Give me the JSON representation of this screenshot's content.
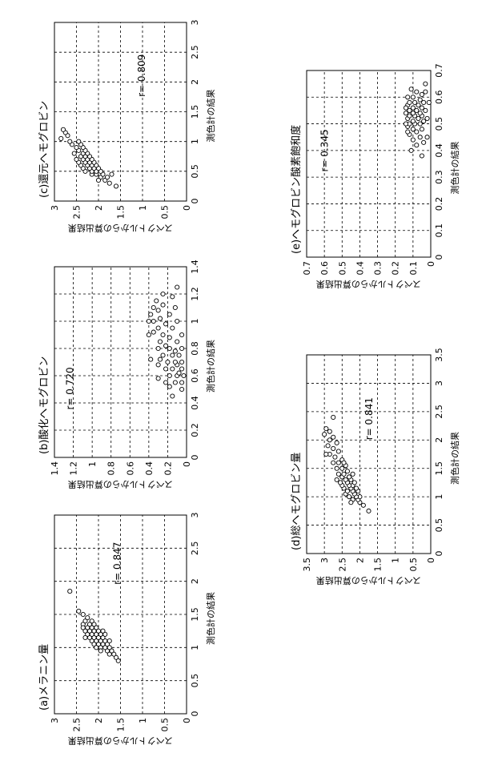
{
  "chart_data": [
    {
      "id": "a",
      "type": "scatter",
      "title": "(a)メラニン量",
      "xlabel": "測色計の結果",
      "ylabel": "スペクトルからの算出結果",
      "xlim": [
        0,
        3
      ],
      "ylim": [
        0,
        3
      ],
      "xticks": [
        "0",
        "0.5",
        "1",
        "1.5",
        "2",
        "2.5",
        "3"
      ],
      "yticks": [
        "0",
        "0.5",
        "1",
        "1.5",
        "2",
        "2.5",
        "3"
      ],
      "annotation": "r= 0.847",
      "annotation_pos": [
        1.95,
        1.5
      ],
      "grid": true,
      "points": [
        [
          0.8,
          1.55
        ],
        [
          0.85,
          1.6
        ],
        [
          0.9,
          1.65
        ],
        [
          0.9,
          1.75
        ],
        [
          0.95,
          1.7
        ],
        [
          0.95,
          1.8
        ],
        [
          1.0,
          1.75
        ],
        [
          1.0,
          1.85
        ],
        [
          1.0,
          1.95
        ],
        [
          1.05,
          1.8
        ],
        [
          1.05,
          1.9
        ],
        [
          1.05,
          2.0
        ],
        [
          1.1,
          1.85
        ],
        [
          1.1,
          1.95
        ],
        [
          1.1,
          2.05
        ],
        [
          1.1,
          2.15
        ],
        [
          1.15,
          1.9
        ],
        [
          1.15,
          2.0
        ],
        [
          1.15,
          2.1
        ],
        [
          1.15,
          2.2
        ],
        [
          1.2,
          1.95
        ],
        [
          1.2,
          2.05
        ],
        [
          1.2,
          2.15
        ],
        [
          1.2,
          2.25
        ],
        [
          1.25,
          2.0
        ],
        [
          1.25,
          2.1
        ],
        [
          1.25,
          2.2
        ],
        [
          1.25,
          2.3
        ],
        [
          1.3,
          2.05
        ],
        [
          1.3,
          2.15
        ],
        [
          1.3,
          2.25
        ],
        [
          1.35,
          2.1
        ],
        [
          1.35,
          2.2
        ],
        [
          1.35,
          2.35
        ],
        [
          1.4,
          2.15
        ],
        [
          1.4,
          2.3
        ],
        [
          1.45,
          2.25
        ],
        [
          1.5,
          2.35
        ],
        [
          1.55,
          2.45
        ],
        [
          1.85,
          2.65
        ],
        [
          0.95,
          1.95
        ],
        [
          1.05,
          2.1
        ],
        [
          1.15,
          2.3
        ],
        [
          1.2,
          1.85
        ],
        [
          1.3,
          2.35
        ],
        [
          1.0,
          2.05
        ],
        [
          1.1,
          1.75
        ],
        [
          1.25,
          1.9
        ]
      ]
    },
    {
      "id": "b",
      "type": "scatter",
      "title": "(b)酸化ヘモグロビン",
      "xlabel": "測色計の結果",
      "ylabel": "スペクトルからの算出結果",
      "xlim": [
        0,
        1.4
      ],
      "ylim": [
        0,
        1.4
      ],
      "xticks": [
        "0",
        "0.2",
        "0.4",
        "0.6",
        "0.8",
        "1",
        "1.2",
        "1.4"
      ],
      "yticks": [
        "0",
        "0.2",
        "0.4",
        "0.6",
        "0.8",
        "1",
        "1.2",
        "1.4"
      ],
      "annotation": "r= 0.720",
      "annotation_pos": [
        0.35,
        1.2
      ],
      "grid": true,
      "points": [
        [
          0.5,
          0.05
        ],
        [
          0.55,
          0.05
        ],
        [
          0.55,
          0.12
        ],
        [
          0.6,
          0.03
        ],
        [
          0.6,
          0.1
        ],
        [
          0.6,
          0.18
        ],
        [
          0.62,
          0.08
        ],
        [
          0.65,
          0.05
        ],
        [
          0.65,
          0.15
        ],
        [
          0.65,
          0.22
        ],
        [
          0.68,
          0.1
        ],
        [
          0.7,
          0.05
        ],
        [
          0.7,
          0.12
        ],
        [
          0.7,
          0.2
        ],
        [
          0.72,
          0.28
        ],
        [
          0.75,
          0.08
        ],
        [
          0.75,
          0.15
        ],
        [
          0.75,
          0.25
        ],
        [
          0.78,
          0.12
        ],
        [
          0.8,
          0.05
        ],
        [
          0.8,
          0.18
        ],
        [
          0.8,
          0.3
        ],
        [
          0.82,
          0.22
        ],
        [
          0.85,
          0.1
        ],
        [
          0.85,
          0.28
        ],
        [
          0.88,
          0.18
        ],
        [
          0.9,
          0.05
        ],
        [
          0.9,
          0.25
        ],
        [
          0.92,
          0.35
        ],
        [
          0.95,
          0.15
        ],
        [
          0.95,
          0.3
        ],
        [
          0.98,
          0.22
        ],
        [
          1.0,
          0.1
        ],
        [
          1.0,
          0.35
        ],
        [
          1.0,
          0.4
        ],
        [
          1.02,
          0.28
        ],
        [
          1.05,
          0.18
        ],
        [
          1.05,
          0.38
        ],
        [
          1.08,
          0.3
        ],
        [
          1.1,
          0.12
        ],
        [
          1.12,
          0.25
        ],
        [
          1.15,
          0.32
        ],
        [
          1.18,
          0.15
        ],
        [
          1.2,
          0.25
        ],
        [
          1.25,
          0.1
        ],
        [
          0.45,
          0.15
        ],
        [
          0.58,
          0.3
        ],
        [
          0.72,
          0.38
        ],
        [
          0.55,
          0.22
        ],
        [
          0.68,
          0.3
        ],
        [
          0.9,
          0.4
        ],
        [
          0.52,
          0.18
        ],
        [
          1.1,
          0.35
        ]
      ]
    },
    {
      "id": "c",
      "type": "scatter",
      "title": "(c)還元ヘモグロビン",
      "xlabel": "測色計の結果",
      "ylabel": "スペクトルからの算出結果",
      "xlim": [
        0,
        3
      ],
      "ylim": [
        0,
        3
      ],
      "xticks": [
        "0",
        "0.5",
        "1",
        "1.5",
        "2",
        "2.5",
        "3"
      ],
      "yticks": [
        "0",
        "0.5",
        "1",
        "1.5",
        "2",
        "2.5",
        "3"
      ],
      "annotation": "r= 0.809",
      "annotation_pos": [
        1.75,
        0.95
      ],
      "grid": true,
      "points": [
        [
          0.25,
          1.6
        ],
        [
          0.3,
          1.75
        ],
        [
          0.35,
          1.85
        ],
        [
          0.4,
          1.8
        ],
        [
          0.4,
          1.95
        ],
        [
          0.45,
          1.9
        ],
        [
          0.45,
          2.05
        ],
        [
          0.45,
          2.15
        ],
        [
          0.5,
          1.95
        ],
        [
          0.5,
          2.05
        ],
        [
          0.5,
          2.15
        ],
        [
          0.5,
          2.3
        ],
        [
          0.55,
          2.0
        ],
        [
          0.55,
          2.1
        ],
        [
          0.55,
          2.2
        ],
        [
          0.55,
          2.35
        ],
        [
          0.6,
          2.05
        ],
        [
          0.6,
          2.15
        ],
        [
          0.6,
          2.25
        ],
        [
          0.6,
          2.4
        ],
        [
          0.65,
          2.1
        ],
        [
          0.65,
          2.2
        ],
        [
          0.65,
          2.3
        ],
        [
          0.65,
          2.45
        ],
        [
          0.7,
          2.15
        ],
        [
          0.7,
          2.25
        ],
        [
          0.7,
          2.35
        ],
        [
          0.7,
          2.5
        ],
        [
          0.75,
          2.2
        ],
        [
          0.75,
          2.3
        ],
        [
          0.75,
          2.4
        ],
        [
          0.8,
          2.25
        ],
        [
          0.8,
          2.35
        ],
        [
          0.8,
          2.55
        ],
        [
          0.85,
          2.3
        ],
        [
          0.85,
          2.45
        ],
        [
          0.9,
          2.35
        ],
        [
          0.9,
          2.5
        ],
        [
          0.95,
          2.4
        ],
        [
          0.95,
          2.6
        ],
        [
          1.0,
          2.45
        ],
        [
          1.0,
          2.65
        ],
        [
          1.05,
          2.85
        ],
        [
          1.1,
          2.7
        ],
        [
          1.15,
          2.75
        ],
        [
          1.2,
          2.8
        ],
        [
          0.35,
          2.0
        ],
        [
          0.45,
          1.7
        ]
      ]
    },
    {
      "id": "d",
      "type": "scatter",
      "title": "(d)総ヘモグロビン量",
      "xlabel": "測色計の結果",
      "ylabel": "スペクトルからの算出結果",
      "xlim": [
        0,
        3.5
      ],
      "ylim": [
        0,
        3.5
      ],
      "xticks": [
        "0",
        "0.5",
        "1",
        "1.5",
        "2",
        "2.5",
        "3",
        "3.5"
      ],
      "yticks": [
        "0",
        "0.5",
        "1",
        "1.5",
        "2",
        "2.5",
        "3",
        "3.5"
      ],
      "annotation": "r= 0.841",
      "annotation_pos": [
        2.0,
        1.65
      ],
      "grid": true,
      "points": [
        [
          0.75,
          1.75
        ],
        [
          0.85,
          1.9
        ],
        [
          0.9,
          2.0
        ],
        [
          0.95,
          2.05
        ],
        [
          0.95,
          2.2
        ],
        [
          1.0,
          2.0
        ],
        [
          1.0,
          2.1
        ],
        [
          1.0,
          2.3
        ],
        [
          1.05,
          2.15
        ],
        [
          1.05,
          2.4
        ],
        [
          1.1,
          2.05
        ],
        [
          1.1,
          2.2
        ],
        [
          1.1,
          2.35
        ],
        [
          1.15,
          2.1
        ],
        [
          1.15,
          2.25
        ],
        [
          1.15,
          2.45
        ],
        [
          1.2,
          2.2
        ],
        [
          1.2,
          2.3
        ],
        [
          1.2,
          2.5
        ],
        [
          1.25,
          2.15
        ],
        [
          1.25,
          2.35
        ],
        [
          1.25,
          2.55
        ],
        [
          1.3,
          2.25
        ],
        [
          1.3,
          2.4
        ],
        [
          1.35,
          2.3
        ],
        [
          1.35,
          2.5
        ],
        [
          1.4,
          2.2
        ],
        [
          1.4,
          2.45
        ],
        [
          1.4,
          2.6
        ],
        [
          1.45,
          2.35
        ],
        [
          1.5,
          2.5
        ],
        [
          1.5,
          2.65
        ],
        [
          1.55,
          2.4
        ],
        [
          1.6,
          2.6
        ],
        [
          1.6,
          2.75
        ],
        [
          1.65,
          2.5
        ],
        [
          1.7,
          2.7
        ],
        [
          1.75,
          2.85
        ],
        [
          1.8,
          2.6
        ],
        [
          1.85,
          2.75
        ],
        [
          1.9,
          2.9
        ],
        [
          1.95,
          2.65
        ],
        [
          2.0,
          2.85
        ],
        [
          2.05,
          2.75
        ],
        [
          2.1,
          3.0
        ],
        [
          2.15,
          2.85
        ],
        [
          2.2,
          2.95
        ],
        [
          2.4,
          2.75
        ],
        [
          0.9,
          2.25
        ],
        [
          1.3,
          2.65
        ],
        [
          1.6,
          2.45
        ],
        [
          1.75,
          2.95
        ]
      ]
    },
    {
      "id": "e",
      "type": "scatter",
      "title": "(e)ヘモグロビン酸素飽和度",
      "xlabel": "測色計の結果",
      "ylabel": "スペクトルからの算出結果",
      "xlim": [
        0,
        0.7
      ],
      "ylim": [
        0,
        0.7
      ],
      "xticks": [
        "0",
        "0.1",
        "0.2",
        "0.3",
        "0.4",
        "0.5",
        "0.6",
        "0.7"
      ],
      "yticks": [
        "0",
        "0.1",
        "0.2",
        "0.3",
        "0.4",
        "0.5",
        "0.6",
        "0.7"
      ],
      "annotation": "r= 0.345",
      "annotation_pos": [
        0.32,
        0.58
      ],
      "grid": true,
      "points": [
        [
          0.38,
          0.05
        ],
        [
          0.42,
          0.08
        ],
        [
          0.43,
          0.04
        ],
        [
          0.44,
          0.1
        ],
        [
          0.45,
          0.06
        ],
        [
          0.46,
          0.12
        ],
        [
          0.47,
          0.08
        ],
        [
          0.48,
          0.05
        ],
        [
          0.48,
          0.1
        ],
        [
          0.49,
          0.13
        ],
        [
          0.5,
          0.06
        ],
        [
          0.5,
          0.09
        ],
        [
          0.5,
          0.12
        ],
        [
          0.51,
          0.04
        ],
        [
          0.51,
          0.1
        ],
        [
          0.52,
          0.07
        ],
        [
          0.52,
          0.13
        ],
        [
          0.53,
          0.05
        ],
        [
          0.53,
          0.09
        ],
        [
          0.53,
          0.12
        ],
        [
          0.54,
          0.06
        ],
        [
          0.54,
          0.1
        ],
        [
          0.55,
          0.03
        ],
        [
          0.55,
          0.08
        ],
        [
          0.55,
          0.12
        ],
        [
          0.56,
          0.05
        ],
        [
          0.56,
          0.1
        ],
        [
          0.57,
          0.07
        ],
        [
          0.57,
          0.13
        ],
        [
          0.58,
          0.04
        ],
        [
          0.58,
          0.09
        ],
        [
          0.58,
          0.12
        ],
        [
          0.59,
          0.06
        ],
        [
          0.6,
          0.1
        ],
        [
          0.6,
          0.13
        ],
        [
          0.61,
          0.05
        ],
        [
          0.62,
          0.08
        ],
        [
          0.63,
          0.11
        ],
        [
          0.65,
          0.03
        ],
        [
          0.45,
          0.02
        ],
        [
          0.52,
          0.02
        ],
        [
          0.5,
          0.14
        ],
        [
          0.56,
          0.14
        ],
        [
          0.47,
          0.13
        ],
        [
          0.62,
          0.03
        ],
        [
          0.4,
          0.11
        ],
        [
          0.58,
          0.01
        ],
        [
          0.54,
          0.14
        ]
      ]
    }
  ]
}
